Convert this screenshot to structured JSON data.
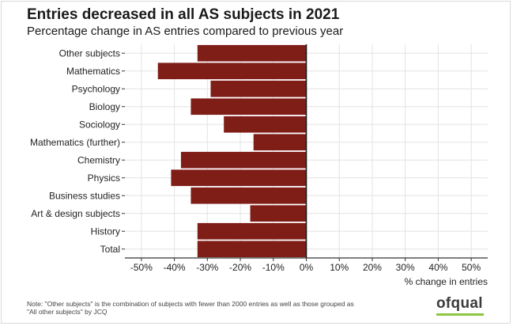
{
  "title": "Entries decreased in all AS subjects in 2021",
  "subtitle": "Percentage change in AS entries compared to previous year",
  "note_line1": "Note: \"Other subjects\" is the combination of subjects with fewer than 2000 entries as well as those grouped as",
  "note_line2": "\"All other subjects\" by JCQ",
  "logo_text": "ofqual",
  "colors": {
    "bar": "#7f1d17",
    "grid": "#e3e3e3",
    "logo_accent": "#8dc63f"
  },
  "chart_data": {
    "type": "bar",
    "orientation": "horizontal",
    "categories": [
      "Other subjects",
      "Mathematics",
      "Psychology",
      "Biology",
      "Sociology",
      "Mathematics (further)",
      "Chemistry",
      "Physics",
      "Business studies",
      "Art & design subjects",
      "History",
      "Total"
    ],
    "values": [
      -33,
      -45,
      -29,
      -35,
      -25,
      -16,
      -38,
      -41,
      -35,
      -17,
      -33,
      -33
    ],
    "xlabel": "% change in entries",
    "ylabel": "",
    "xlim": [
      -55,
      55
    ],
    "xticks": [
      -50,
      -40,
      -30,
      -20,
      -10,
      0,
      10,
      20,
      30,
      40,
      50
    ],
    "xtick_labels": [
      "-50%",
      "-40%",
      "-30%",
      "-20%",
      "-10%",
      "0%",
      "10%",
      "20%",
      "30%",
      "40%",
      "50%"
    ],
    "grid": true
  }
}
